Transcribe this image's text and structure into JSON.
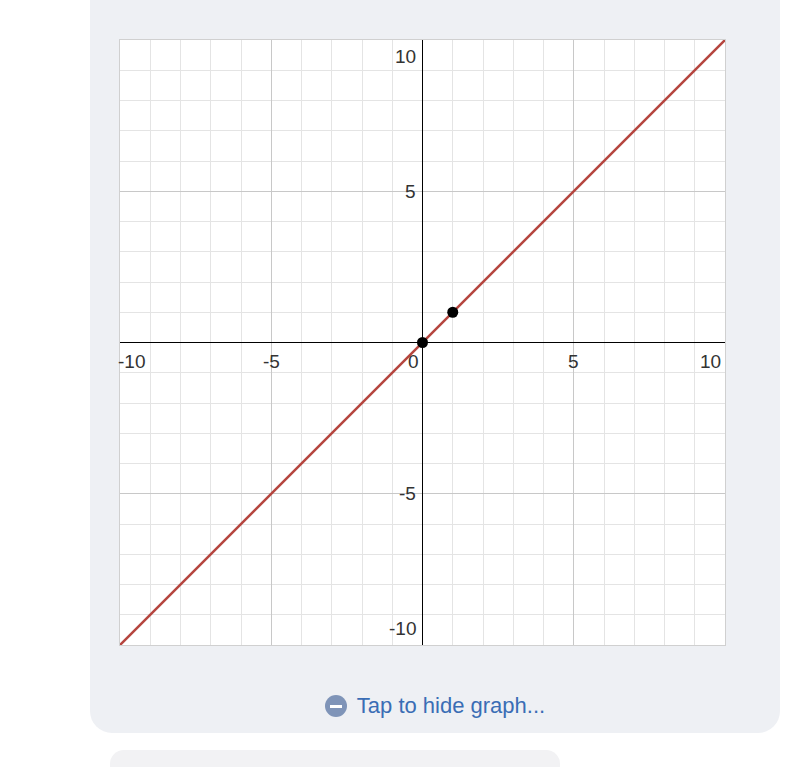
{
  "chart_data": {
    "type": "line",
    "xlim": [
      -10,
      10
    ],
    "ylim": [
      -10,
      10
    ],
    "xticks": [
      -10,
      -5,
      0,
      5,
      10
    ],
    "yticks": [
      -10,
      -5,
      0,
      5,
      10
    ],
    "grid": true,
    "series": [
      {
        "type": "line",
        "color": "#b5453e",
        "x": [
          -10,
          10
        ],
        "values": [
          -10,
          10
        ]
      },
      {
        "type": "scatter",
        "color": "#000000",
        "x": [
          0,
          1
        ],
        "values": [
          0,
          1
        ]
      }
    ],
    "annotations": [
      "Tap to hide graph..."
    ]
  }
}
